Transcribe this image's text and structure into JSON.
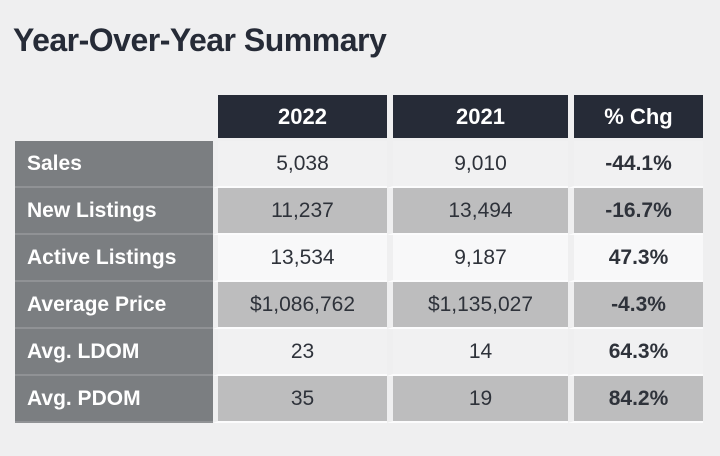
{
  "title": "Year-Over-Year Summary",
  "table": {
    "columns": [
      "2022",
      "2021",
      "% Chg"
    ],
    "rows": [
      {
        "label": "Sales",
        "cells": [
          "5,038",
          "9,010",
          "-44.1%"
        ]
      },
      {
        "label": "New Listings",
        "cells": [
          "11,237",
          "13,494",
          "-16.7%"
        ]
      },
      {
        "label": "Active Listings",
        "cells": [
          "13,534",
          "9,187",
          "47.3%"
        ]
      },
      {
        "label": "Average Price",
        "cells": [
          "$1,086,762",
          "$1,135,027",
          "-4.3%"
        ]
      },
      {
        "label": "Avg. LDOM",
        "cells": [
          "23",
          "14",
          "64.3%"
        ]
      },
      {
        "label": "Avg. PDOM",
        "cells": [
          "35",
          "19",
          "84.2%"
        ]
      }
    ]
  },
  "chart_data": {
    "type": "table",
    "title": "Year-Over-Year Summary",
    "columns": [
      "",
      "2022",
      "2021",
      "% Chg"
    ],
    "metrics": [
      {
        "label": "Sales",
        "v2022": 5038,
        "v2021": 9010,
        "pct_chg": -44.1
      },
      {
        "label": "New Listings",
        "v2022": 11237,
        "v2021": 13494,
        "pct_chg": -16.7
      },
      {
        "label": "Active Listings",
        "v2022": 13534,
        "v2021": 9187,
        "pct_chg": 47.3
      },
      {
        "label": "Average Price",
        "v2022": 1086762,
        "v2021": 1135027,
        "pct_chg": -4.3
      },
      {
        "label": "Avg. LDOM",
        "v2022": 23,
        "v2021": 14,
        "pct_chg": 64.3
      },
      {
        "label": "Avg. PDOM",
        "v2022": 35,
        "v2021": 19,
        "pct_chg": 84.2
      }
    ],
    "layout": {
      "highlighted_row": "Active Listings",
      "header_position": "top",
      "label_column": "left"
    }
  },
  "colors": {
    "page_bg": "#efeff0",
    "header_bg": "#262b37",
    "label_bg": "#7b7e81",
    "row_light": "#f1f1f2",
    "row_gray": "#bdbdbe",
    "row_highlight": "#f8f8f9",
    "text_dark": "#2e323a",
    "text_white": "#ffffff"
  }
}
